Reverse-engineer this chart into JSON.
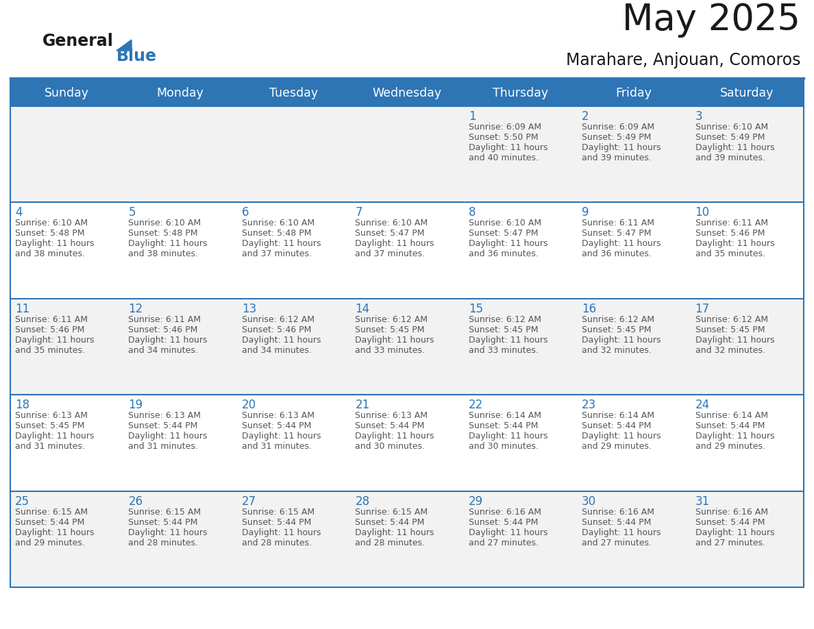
{
  "title": "May 2025",
  "subtitle": "Marahare, Anjouan, Comoros",
  "days_of_week": [
    "Sunday",
    "Monday",
    "Tuesday",
    "Wednesday",
    "Thursday",
    "Friday",
    "Saturday"
  ],
  "header_bg": "#2E75B6",
  "header_text": "#FFFFFF",
  "cell_bg_odd": "#F2F2F2",
  "cell_bg_even": "#FFFFFF",
  "cell_border": "#2E75B6",
  "day_num_color": "#2E75B6",
  "text_color": "#555555",
  "title_color": "#1a1a1a",
  "logo_general_color": "#1a1a1a",
  "logo_blue_color": "#2E75B6",
  "calendar": [
    [
      null,
      null,
      null,
      null,
      {
        "day": 1,
        "sunrise": "6:09 AM",
        "sunset": "5:50 PM",
        "daylight": "11 hours and 40 minutes."
      },
      {
        "day": 2,
        "sunrise": "6:09 AM",
        "sunset": "5:49 PM",
        "daylight": "11 hours and 39 minutes."
      },
      {
        "day": 3,
        "sunrise": "6:10 AM",
        "sunset": "5:49 PM",
        "daylight": "11 hours and 39 minutes."
      }
    ],
    [
      {
        "day": 4,
        "sunrise": "6:10 AM",
        "sunset": "5:48 PM",
        "daylight": "11 hours and 38 minutes."
      },
      {
        "day": 5,
        "sunrise": "6:10 AM",
        "sunset": "5:48 PM",
        "daylight": "11 hours and 38 minutes."
      },
      {
        "day": 6,
        "sunrise": "6:10 AM",
        "sunset": "5:48 PM",
        "daylight": "11 hours and 37 minutes."
      },
      {
        "day": 7,
        "sunrise": "6:10 AM",
        "sunset": "5:47 PM",
        "daylight": "11 hours and 37 minutes."
      },
      {
        "day": 8,
        "sunrise": "6:10 AM",
        "sunset": "5:47 PM",
        "daylight": "11 hours and 36 minutes."
      },
      {
        "day": 9,
        "sunrise": "6:11 AM",
        "sunset": "5:47 PM",
        "daylight": "11 hours and 36 minutes."
      },
      {
        "day": 10,
        "sunrise": "6:11 AM",
        "sunset": "5:46 PM",
        "daylight": "11 hours and 35 minutes."
      }
    ],
    [
      {
        "day": 11,
        "sunrise": "6:11 AM",
        "sunset": "5:46 PM",
        "daylight": "11 hours and 35 minutes."
      },
      {
        "day": 12,
        "sunrise": "6:11 AM",
        "sunset": "5:46 PM",
        "daylight": "11 hours and 34 minutes."
      },
      {
        "day": 13,
        "sunrise": "6:12 AM",
        "sunset": "5:46 PM",
        "daylight": "11 hours and 34 minutes."
      },
      {
        "day": 14,
        "sunrise": "6:12 AM",
        "sunset": "5:45 PM",
        "daylight": "11 hours and 33 minutes."
      },
      {
        "day": 15,
        "sunrise": "6:12 AM",
        "sunset": "5:45 PM",
        "daylight": "11 hours and 33 minutes."
      },
      {
        "day": 16,
        "sunrise": "6:12 AM",
        "sunset": "5:45 PM",
        "daylight": "11 hours and 32 minutes."
      },
      {
        "day": 17,
        "sunrise": "6:12 AM",
        "sunset": "5:45 PM",
        "daylight": "11 hours and 32 minutes."
      }
    ],
    [
      {
        "day": 18,
        "sunrise": "6:13 AM",
        "sunset": "5:45 PM",
        "daylight": "11 hours and 31 minutes."
      },
      {
        "day": 19,
        "sunrise": "6:13 AM",
        "sunset": "5:44 PM",
        "daylight": "11 hours and 31 minutes."
      },
      {
        "day": 20,
        "sunrise": "6:13 AM",
        "sunset": "5:44 PM",
        "daylight": "11 hours and 31 minutes."
      },
      {
        "day": 21,
        "sunrise": "6:13 AM",
        "sunset": "5:44 PM",
        "daylight": "11 hours and 30 minutes."
      },
      {
        "day": 22,
        "sunrise": "6:14 AM",
        "sunset": "5:44 PM",
        "daylight": "11 hours and 30 minutes."
      },
      {
        "day": 23,
        "sunrise": "6:14 AM",
        "sunset": "5:44 PM",
        "daylight": "11 hours and 29 minutes."
      },
      {
        "day": 24,
        "sunrise": "6:14 AM",
        "sunset": "5:44 PM",
        "daylight": "11 hours and 29 minutes."
      }
    ],
    [
      {
        "day": 25,
        "sunrise": "6:15 AM",
        "sunset": "5:44 PM",
        "daylight": "11 hours and 29 minutes."
      },
      {
        "day": 26,
        "sunrise": "6:15 AM",
        "sunset": "5:44 PM",
        "daylight": "11 hours and 28 minutes."
      },
      {
        "day": 27,
        "sunrise": "6:15 AM",
        "sunset": "5:44 PM",
        "daylight": "11 hours and 28 minutes."
      },
      {
        "day": 28,
        "sunrise": "6:15 AM",
        "sunset": "5:44 PM",
        "daylight": "11 hours and 28 minutes."
      },
      {
        "day": 29,
        "sunrise": "6:16 AM",
        "sunset": "5:44 PM",
        "daylight": "11 hours and 27 minutes."
      },
      {
        "day": 30,
        "sunrise": "6:16 AM",
        "sunset": "5:44 PM",
        "daylight": "11 hours and 27 minutes."
      },
      {
        "day": 31,
        "sunrise": "6:16 AM",
        "sunset": "5:44 PM",
        "daylight": "11 hours and 27 minutes."
      }
    ]
  ]
}
